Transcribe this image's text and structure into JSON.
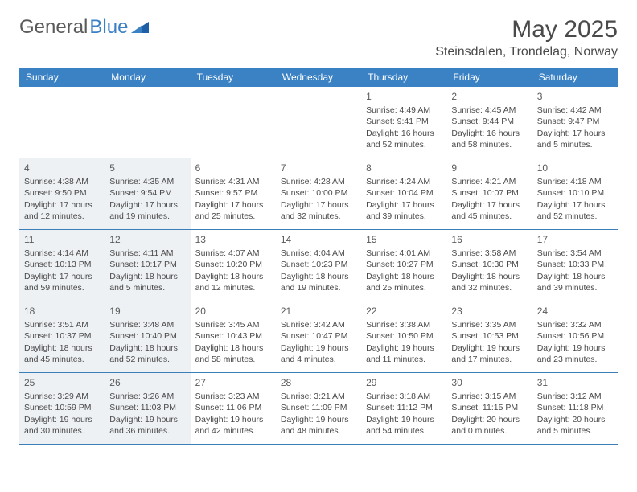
{
  "logo": {
    "word1": "General",
    "word2": "Blue"
  },
  "title": "May 2025",
  "location": "Steinsdalen, Trondelag, Norway",
  "colors": {
    "header_bg": "#3b82c4",
    "header_text": "#ffffff",
    "border": "#3b7fb8",
    "shaded": "#eef1f4",
    "text": "#4a4a4a",
    "logo_gray": "#5a5a5a",
    "logo_blue": "#3b7fc4"
  },
  "typography": {
    "title_fontsize": 30,
    "location_fontsize": 16,
    "day_header_fontsize": 12,
    "cell_fontsize": 10.5,
    "daynum_fontsize": 12
  },
  "day_headers": [
    "Sunday",
    "Monday",
    "Tuesday",
    "Wednesday",
    "Thursday",
    "Friday",
    "Saturday"
  ],
  "weeks": [
    [
      {
        "num": "",
        "shaded": false,
        "lines": []
      },
      {
        "num": "",
        "shaded": false,
        "lines": []
      },
      {
        "num": "",
        "shaded": false,
        "lines": []
      },
      {
        "num": "",
        "shaded": false,
        "lines": []
      },
      {
        "num": "1",
        "shaded": false,
        "lines": [
          "Sunrise: 4:49 AM",
          "Sunset: 9:41 PM",
          "Daylight: 16 hours and 52 minutes."
        ]
      },
      {
        "num": "2",
        "shaded": false,
        "lines": [
          "Sunrise: 4:45 AM",
          "Sunset: 9:44 PM",
          "Daylight: 16 hours and 58 minutes."
        ]
      },
      {
        "num": "3",
        "shaded": false,
        "lines": [
          "Sunrise: 4:42 AM",
          "Sunset: 9:47 PM",
          "Daylight: 17 hours and 5 minutes."
        ]
      }
    ],
    [
      {
        "num": "4",
        "shaded": true,
        "lines": [
          "Sunrise: 4:38 AM",
          "Sunset: 9:50 PM",
          "Daylight: 17 hours and 12 minutes."
        ]
      },
      {
        "num": "5",
        "shaded": true,
        "lines": [
          "Sunrise: 4:35 AM",
          "Sunset: 9:54 PM",
          "Daylight: 17 hours and 19 minutes."
        ]
      },
      {
        "num": "6",
        "shaded": false,
        "lines": [
          "Sunrise: 4:31 AM",
          "Sunset: 9:57 PM",
          "Daylight: 17 hours and 25 minutes."
        ]
      },
      {
        "num": "7",
        "shaded": false,
        "lines": [
          "Sunrise: 4:28 AM",
          "Sunset: 10:00 PM",
          "Daylight: 17 hours and 32 minutes."
        ]
      },
      {
        "num": "8",
        "shaded": false,
        "lines": [
          "Sunrise: 4:24 AM",
          "Sunset: 10:04 PM",
          "Daylight: 17 hours and 39 minutes."
        ]
      },
      {
        "num": "9",
        "shaded": false,
        "lines": [
          "Sunrise: 4:21 AM",
          "Sunset: 10:07 PM",
          "Daylight: 17 hours and 45 minutes."
        ]
      },
      {
        "num": "10",
        "shaded": false,
        "lines": [
          "Sunrise: 4:18 AM",
          "Sunset: 10:10 PM",
          "Daylight: 17 hours and 52 minutes."
        ]
      }
    ],
    [
      {
        "num": "11",
        "shaded": true,
        "lines": [
          "Sunrise: 4:14 AM",
          "Sunset: 10:13 PM",
          "Daylight: 17 hours and 59 minutes."
        ]
      },
      {
        "num": "12",
        "shaded": true,
        "lines": [
          "Sunrise: 4:11 AM",
          "Sunset: 10:17 PM",
          "Daylight: 18 hours and 5 minutes."
        ]
      },
      {
        "num": "13",
        "shaded": false,
        "lines": [
          "Sunrise: 4:07 AM",
          "Sunset: 10:20 PM",
          "Daylight: 18 hours and 12 minutes."
        ]
      },
      {
        "num": "14",
        "shaded": false,
        "lines": [
          "Sunrise: 4:04 AM",
          "Sunset: 10:23 PM",
          "Daylight: 18 hours and 19 minutes."
        ]
      },
      {
        "num": "15",
        "shaded": false,
        "lines": [
          "Sunrise: 4:01 AM",
          "Sunset: 10:27 PM",
          "Daylight: 18 hours and 25 minutes."
        ]
      },
      {
        "num": "16",
        "shaded": false,
        "lines": [
          "Sunrise: 3:58 AM",
          "Sunset: 10:30 PM",
          "Daylight: 18 hours and 32 minutes."
        ]
      },
      {
        "num": "17",
        "shaded": false,
        "lines": [
          "Sunrise: 3:54 AM",
          "Sunset: 10:33 PM",
          "Daylight: 18 hours and 39 minutes."
        ]
      }
    ],
    [
      {
        "num": "18",
        "shaded": true,
        "lines": [
          "Sunrise: 3:51 AM",
          "Sunset: 10:37 PM",
          "Daylight: 18 hours and 45 minutes."
        ]
      },
      {
        "num": "19",
        "shaded": true,
        "lines": [
          "Sunrise: 3:48 AM",
          "Sunset: 10:40 PM",
          "Daylight: 18 hours and 52 minutes."
        ]
      },
      {
        "num": "20",
        "shaded": false,
        "lines": [
          "Sunrise: 3:45 AM",
          "Sunset: 10:43 PM",
          "Daylight: 18 hours and 58 minutes."
        ]
      },
      {
        "num": "21",
        "shaded": false,
        "lines": [
          "Sunrise: 3:42 AM",
          "Sunset: 10:47 PM",
          "Daylight: 19 hours and 4 minutes."
        ]
      },
      {
        "num": "22",
        "shaded": false,
        "lines": [
          "Sunrise: 3:38 AM",
          "Sunset: 10:50 PM",
          "Daylight: 19 hours and 11 minutes."
        ]
      },
      {
        "num": "23",
        "shaded": false,
        "lines": [
          "Sunrise: 3:35 AM",
          "Sunset: 10:53 PM",
          "Daylight: 19 hours and 17 minutes."
        ]
      },
      {
        "num": "24",
        "shaded": false,
        "lines": [
          "Sunrise: 3:32 AM",
          "Sunset: 10:56 PM",
          "Daylight: 19 hours and 23 minutes."
        ]
      }
    ],
    [
      {
        "num": "25",
        "shaded": true,
        "lines": [
          "Sunrise: 3:29 AM",
          "Sunset: 10:59 PM",
          "Daylight: 19 hours and 30 minutes."
        ]
      },
      {
        "num": "26",
        "shaded": true,
        "lines": [
          "Sunrise: 3:26 AM",
          "Sunset: 11:03 PM",
          "Daylight: 19 hours and 36 minutes."
        ]
      },
      {
        "num": "27",
        "shaded": false,
        "lines": [
          "Sunrise: 3:23 AM",
          "Sunset: 11:06 PM",
          "Daylight: 19 hours and 42 minutes."
        ]
      },
      {
        "num": "28",
        "shaded": false,
        "lines": [
          "Sunrise: 3:21 AM",
          "Sunset: 11:09 PM",
          "Daylight: 19 hours and 48 minutes."
        ]
      },
      {
        "num": "29",
        "shaded": false,
        "lines": [
          "Sunrise: 3:18 AM",
          "Sunset: 11:12 PM",
          "Daylight: 19 hours and 54 minutes."
        ]
      },
      {
        "num": "30",
        "shaded": false,
        "lines": [
          "Sunrise: 3:15 AM",
          "Sunset: 11:15 PM",
          "Daylight: 20 hours and 0 minutes."
        ]
      },
      {
        "num": "31",
        "shaded": false,
        "lines": [
          "Sunrise: 3:12 AM",
          "Sunset: 11:18 PM",
          "Daylight: 20 hours and 5 minutes."
        ]
      }
    ]
  ]
}
